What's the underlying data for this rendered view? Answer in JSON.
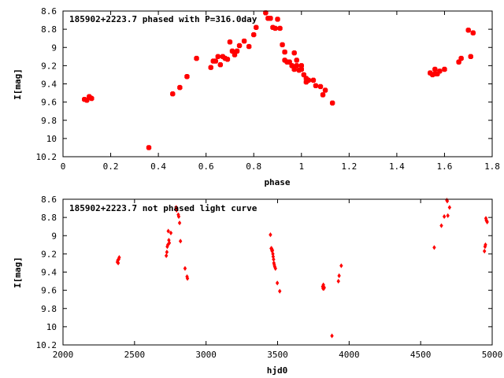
{
  "chart_data": [
    {
      "type": "scatter",
      "title": "185902+2223.7 phased with P=316.0day",
      "xlabel": "phase",
      "ylabel": "I[mag]",
      "xlim": [
        0,
        1.8
      ],
      "ylim": [
        10.2,
        8.6
      ],
      "y_inverted": true,
      "grid": false,
      "marker_color": "#ff0000",
      "x_ticks": [
        "0",
        "0.2",
        "0.4",
        "0.6",
        "0.8",
        "1",
        "1.2",
        "1.4",
        "1.6",
        "1.8"
      ],
      "y_ticks": [
        "8.6",
        "8.8",
        "9",
        "9.2",
        "9.4",
        "9.6",
        "9.8",
        "10",
        "10.2"
      ],
      "points": [
        [
          0.09,
          9.57
        ],
        [
          0.1,
          9.58
        ],
        [
          0.11,
          9.54
        ],
        [
          0.12,
          9.56
        ],
        [
          0.36,
          10.1
        ],
        [
          0.46,
          9.51
        ],
        [
          0.49,
          9.44
        ],
        [
          0.52,
          9.32
        ],
        [
          0.56,
          9.12
        ],
        [
          0.62,
          9.22
        ],
        [
          0.63,
          9.15
        ],
        [
          0.64,
          9.15
        ],
        [
          0.65,
          9.1
        ],
        [
          0.66,
          9.19
        ],
        [
          0.67,
          9.1
        ],
        [
          0.68,
          9.12
        ],
        [
          0.69,
          9.13
        ],
        [
          0.7,
          8.94
        ],
        [
          0.71,
          9.04
        ],
        [
          0.72,
          9.08
        ],
        [
          0.73,
          9.04
        ],
        [
          0.74,
          8.98
        ],
        [
          0.76,
          8.93
        ],
        [
          0.78,
          8.99
        ],
        [
          0.8,
          8.86
        ],
        [
          0.81,
          8.78
        ],
        [
          0.85,
          8.62
        ],
        [
          0.86,
          8.68
        ],
        [
          0.87,
          8.68
        ],
        [
          0.88,
          8.78
        ],
        [
          0.89,
          8.79
        ],
        [
          0.9,
          8.69
        ],
        [
          0.91,
          8.79
        ],
        [
          0.92,
          8.97
        ],
        [
          0.93,
          9.05
        ],
        [
          0.93,
          9.14
        ],
        [
          0.94,
          9.16
        ],
        [
          0.95,
          9.16
        ],
        [
          0.96,
          9.2
        ],
        [
          0.97,
          9.24
        ],
        [
          0.97,
          9.06
        ],
        [
          0.98,
          9.14
        ],
        [
          0.98,
          9.2
        ],
        [
          0.99,
          9.25
        ],
        [
          1.0,
          9.2
        ],
        [
          1.0,
          9.24
        ],
        [
          1.01,
          9.3
        ],
        [
          1.02,
          9.34
        ],
        [
          1.02,
          9.38
        ],
        [
          1.03,
          9.36
        ],
        [
          1.05,
          9.36
        ],
        [
          1.06,
          9.42
        ],
        [
          1.08,
          9.43
        ],
        [
          1.09,
          9.52
        ],
        [
          1.1,
          9.47
        ],
        [
          1.13,
          9.61
        ],
        [
          1.54,
          9.28
        ],
        [
          1.55,
          9.3
        ],
        [
          1.56,
          9.29
        ],
        [
          1.56,
          9.24
        ],
        [
          1.57,
          9.29
        ],
        [
          1.58,
          9.26
        ],
        [
          1.6,
          9.24
        ],
        [
          1.66,
          9.16
        ],
        [
          1.67,
          9.12
        ],
        [
          1.7,
          8.81
        ],
        [
          1.71,
          9.1
        ],
        [
          1.72,
          8.84
        ]
      ]
    },
    {
      "type": "scatter",
      "title": "185902+2223.7 not phased light curve",
      "xlabel": "hjd0",
      "ylabel": "I[mag]",
      "xlim": [
        2000,
        5000
      ],
      "ylim": [
        10.2,
        8.6
      ],
      "y_inverted": true,
      "grid": false,
      "marker_color": "#ff0000",
      "x_ticks": [
        "2000",
        "2500",
        "3000",
        "3500",
        "4000",
        "4500",
        "5000"
      ],
      "y_ticks": [
        "8.6",
        "8.8",
        "9",
        "9.2",
        "9.4",
        "9.6",
        "9.8",
        "10",
        "10.2"
      ],
      "points": [
        [
          2380,
          9.29
        ],
        [
          2383,
          9.27
        ],
        [
          2386,
          9.3
        ],
        [
          2389,
          9.26
        ],
        [
          2393,
          9.24
        ],
        [
          2722,
          9.22
        ],
        [
          2726,
          9.18
        ],
        [
          2729,
          9.12
        ],
        [
          2733,
          9.1
        ],
        [
          2736,
          8.95
        ],
        [
          2740,
          9.05
        ],
        [
          2743,
          9.08
        ],
        [
          2754,
          8.97
        ],
        [
          2791,
          8.69
        ],
        [
          2794,
          8.72
        ],
        [
          2806,
          8.77
        ],
        [
          2809,
          8.79
        ],
        [
          2815,
          8.86
        ],
        [
          2821,
          9.06
        ],
        [
          2853,
          9.36
        ],
        [
          2867,
          9.45
        ],
        [
          2870,
          9.47
        ],
        [
          3450,
          8.99
        ],
        [
          3455,
          9.14
        ],
        [
          3458,
          9.14
        ],
        [
          3460,
          9.16
        ],
        [
          3462,
          9.17
        ],
        [
          3464,
          9.16
        ],
        [
          3467,
          9.2
        ],
        [
          3469,
          9.23
        ],
        [
          3472,
          9.26
        ],
        [
          3474,
          9.3
        ],
        [
          3477,
          9.32
        ],
        [
          3480,
          9.34
        ],
        [
          3485,
          9.36
        ],
        [
          3498,
          9.52
        ],
        [
          3515,
          9.61
        ],
        [
          3815,
          9.56
        ],
        [
          3818,
          9.58
        ],
        [
          3820,
          9.54
        ],
        [
          3823,
          9.58
        ],
        [
          3826,
          9.57
        ],
        [
          3880,
          10.1
        ],
        [
          3925,
          9.5
        ],
        [
          3930,
          9.44
        ],
        [
          3945,
          9.33
        ],
        [
          4595,
          9.13
        ],
        [
          4645,
          8.89
        ],
        [
          4665,
          8.79
        ],
        [
          4683,
          8.61
        ],
        [
          4686,
          8.62
        ],
        [
          4690,
          8.78
        ],
        [
          4702,
          8.69
        ],
        [
          4946,
          9.17
        ],
        [
          4950,
          9.12
        ],
        [
          4953,
          9.1
        ],
        [
          4956,
          8.81
        ],
        [
          4959,
          8.83
        ],
        [
          4962,
          8.84
        ],
        [
          4965,
          8.85
        ]
      ]
    }
  ]
}
